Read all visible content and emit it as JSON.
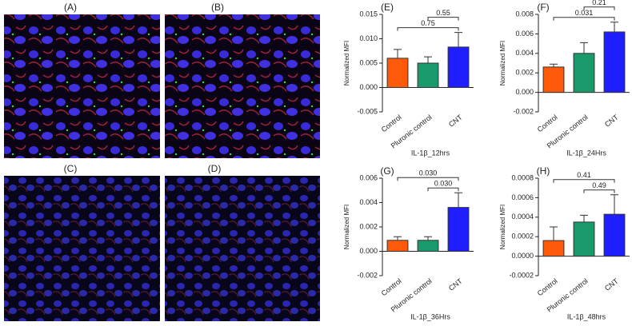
{
  "image_panels": [
    {
      "label": "(A)"
    },
    {
      "label": "(B)"
    },
    {
      "label": "(C)"
    },
    {
      "label": "(D)"
    }
  ],
  "chart_data": [
    {
      "type": "bar",
      "panel": "(E)",
      "ylabel": "Normalized MFI",
      "xlabel": "IL-1β_12hrs",
      "categories": [
        "Control",
        "Pluronic control",
        "CNT"
      ],
      "values": [
        0.006,
        0.005,
        0.0083
      ],
      "errors": [
        0.0018,
        0.0013,
        0.003
      ],
      "colors": [
        "#ff5a0a",
        "#199a6a",
        "#1e1eff"
      ],
      "ylim": [
        -0.005,
        0.015
      ],
      "yticks": [
        -0.005,
        {
          "value": 0,
          "label": "0.000"
        },
        0.005,
        {
          "value": 0.01,
          "label": "0.010"
        },
        0.015
      ],
      "comparisons": [
        {
          "between": [
            0,
            2
          ],
          "label": "0.75"
        },
        {
          "between": [
            1,
            2
          ],
          "label": "0.55"
        }
      ]
    },
    {
      "type": "bar",
      "panel": "(F)",
      "ylabel": "Normalized MFI",
      "xlabel": "IL-1β_24Hrs",
      "categories": [
        "Control",
        "Pluronic control",
        "CNT"
      ],
      "values": [
        0.0026,
        0.004,
        0.0062
      ],
      "errors": [
        0.0003,
        0.0011,
        0.001
      ],
      "colors": [
        "#ff5a0a",
        "#199a6a",
        "#1e1eff"
      ],
      "ylim": [
        -0.002,
        0.008
      ],
      "yticks": [
        -0.002,
        {
          "value": 0,
          "label": "0.000"
        },
        0.002,
        0.004,
        0.006,
        0.008
      ],
      "comparisons": [
        {
          "between": [
            0,
            2
          ],
          "label": "0.031"
        },
        {
          "between": [
            1,
            2
          ],
          "label": "0.21"
        }
      ]
    },
    {
      "type": "bar",
      "panel": "(G)",
      "ylabel": "Normalized MFI",
      "xlabel": "IL-1β_36Hrs",
      "categories": [
        "Control",
        "Pluronic control",
        "CNT"
      ],
      "values": [
        0.0009,
        0.0009,
        0.0036
      ],
      "errors": [
        0.0003,
        0.0003,
        0.0012
      ],
      "colors": [
        "#ff5a0a",
        "#199a6a",
        "#1e1eff"
      ],
      "ylim": [
        -0.002,
        0.006
      ],
      "yticks": [
        -0.002,
        {
          "value": 0,
          "label": "0.000"
        },
        0.002,
        0.004,
        0.006
      ],
      "comparisons": [
        {
          "between": [
            1,
            2
          ],
          "label": "0.030"
        },
        {
          "between": [
            0,
            2
          ],
          "label": "0.030"
        }
      ]
    },
    {
      "type": "bar",
      "panel": "(H)",
      "ylabel": "Normalized MFI",
      "xlabel": "IL-1β_48hrs",
      "categories": [
        "Control",
        "Pluronic control",
        "CNT"
      ],
      "values": [
        0.00016,
        0.00035,
        0.00043
      ],
      "errors": [
        0.00014,
        7e-05,
        0.0002
      ],
      "colors": [
        "#ff5a0a",
        "#199a6a",
        "#1e1eff"
      ],
      "ylim": [
        -0.0002,
        0.0008
      ],
      "yticks": [
        -0.0002,
        {
          "value": 0,
          "label": "0.0000"
        },
        0.0002,
        0.0004,
        0.0006,
        0.0008
      ],
      "comparisons": [
        {
          "between": [
            1,
            2
          ],
          "label": "0.49"
        },
        {
          "between": [
            0,
            2
          ],
          "label": "0.41"
        }
      ]
    }
  ]
}
